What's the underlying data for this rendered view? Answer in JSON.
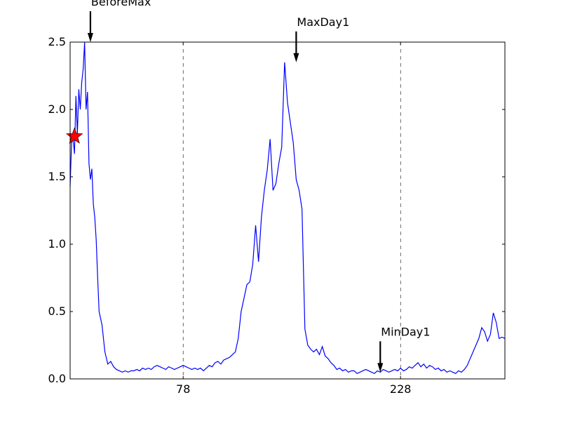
{
  "chart_data": {
    "type": "line",
    "title": "",
    "xlabel": "",
    "ylabel": "",
    "xlim": [
      0,
      300
    ],
    "ylim": [
      0,
      2.5
    ],
    "yticks": [
      0.0,
      0.5,
      1.0,
      1.5,
      2.0,
      2.5
    ],
    "ytick_labels": [
      "0.0",
      "0.5",
      "1.0",
      "1.5",
      "2.0",
      "2.5"
    ],
    "xticks": [
      78,
      228
    ],
    "xtick_labels": [
      "78",
      "228"
    ],
    "grid": "vertical dashed lines at x ticks",
    "line_color": "#0000ff",
    "series": [
      {
        "x": [
          0,
          1,
          2,
          3,
          4,
          5,
          6,
          7,
          8,
          9,
          10,
          11,
          12,
          13,
          14,
          15,
          16,
          17,
          18,
          19,
          20,
          22,
          24,
          26,
          28,
          30,
          32,
          34,
          36,
          38,
          40,
          42,
          44,
          46,
          48,
          50,
          52,
          54,
          56,
          58,
          60,
          62,
          64,
          66,
          68,
          70,
          72,
          74,
          76,
          78,
          80,
          82,
          84,
          86,
          88,
          90,
          92,
          94,
          96,
          98,
          100,
          102,
          104,
          106,
          108,
          110,
          112,
          114,
          116,
          118,
          120,
          122,
          124,
          126,
          128,
          130,
          132,
          134,
          136,
          138,
          140,
          142,
          144,
          146,
          148,
          150,
          152,
          154,
          156,
          158,
          160,
          162,
          164,
          166,
          168,
          170,
          172,
          174,
          176,
          178,
          180,
          182,
          184,
          186,
          188,
          190,
          192,
          194,
          196,
          198,
          200,
          202,
          204,
          206,
          208,
          210,
          212,
          214,
          216,
          218,
          220,
          222,
          224,
          226,
          228,
          230,
          232,
          234,
          236,
          238,
          240,
          242,
          244,
          246,
          248,
          250,
          252,
          254,
          256,
          258,
          260,
          262,
          264,
          266,
          268,
          270,
          272,
          274,
          276,
          278,
          280,
          282,
          284,
          286,
          288,
          290,
          292,
          294,
          296,
          298,
          300
        ],
        "y": [
          1.43,
          1.75,
          1.79,
          1.67,
          2.1,
          1.82,
          2.15,
          2.0,
          2.2,
          2.3,
          2.5,
          2.0,
          2.13,
          1.6,
          1.48,
          1.56,
          1.3,
          1.2,
          1.03,
          0.75,
          0.5,
          0.4,
          0.2,
          0.11,
          0.13,
          0.09,
          0.07,
          0.06,
          0.05,
          0.06,
          0.05,
          0.06,
          0.06,
          0.07,
          0.06,
          0.08,
          0.07,
          0.08,
          0.07,
          0.09,
          0.1,
          0.09,
          0.08,
          0.07,
          0.09,
          0.08,
          0.07,
          0.08,
          0.09,
          0.1,
          0.09,
          0.08,
          0.07,
          0.08,
          0.07,
          0.08,
          0.06,
          0.08,
          0.1,
          0.09,
          0.12,
          0.13,
          0.11,
          0.14,
          0.15,
          0.16,
          0.18,
          0.2,
          0.3,
          0.5,
          0.6,
          0.7,
          0.72,
          0.85,
          1.14,
          0.87,
          1.2,
          1.4,
          1.55,
          1.78,
          1.4,
          1.45,
          1.6,
          1.72,
          2.35,
          2.05,
          1.9,
          1.75,
          1.48,
          1.4,
          1.26,
          0.37,
          0.25,
          0.22,
          0.2,
          0.22,
          0.18,
          0.24,
          0.17,
          0.15,
          0.12,
          0.1,
          0.07,
          0.08,
          0.06,
          0.07,
          0.05,
          0.06,
          0.06,
          0.04,
          0.05,
          0.06,
          0.07,
          0.06,
          0.05,
          0.04,
          0.06,
          0.05,
          0.07,
          0.06,
          0.05,
          0.06,
          0.07,
          0.06,
          0.08,
          0.06,
          0.07,
          0.09,
          0.08,
          0.1,
          0.12,
          0.09,
          0.11,
          0.08,
          0.1,
          0.09,
          0.07,
          0.08,
          0.06,
          0.07,
          0.05,
          0.06,
          0.05,
          0.04,
          0.06,
          0.05,
          0.07,
          0.1,
          0.15,
          0.2,
          0.25,
          0.3,
          0.38,
          0.35,
          0.28,
          0.33,
          0.49,
          0.42,
          0.3,
          0.31,
          0.3
        ]
      }
    ],
    "marker": {
      "shape": "star",
      "color": "#ff0000",
      "x": 3,
      "y": 1.8
    },
    "annotations": [
      {
        "text": "BeforeMax",
        "x": 14,
        "y": 2.5
      },
      {
        "text": "MaxDay1",
        "x": 156,
        "y": 2.35
      },
      {
        "text": "MinDay1",
        "x": 214,
        "y": 0.05
      }
    ]
  }
}
